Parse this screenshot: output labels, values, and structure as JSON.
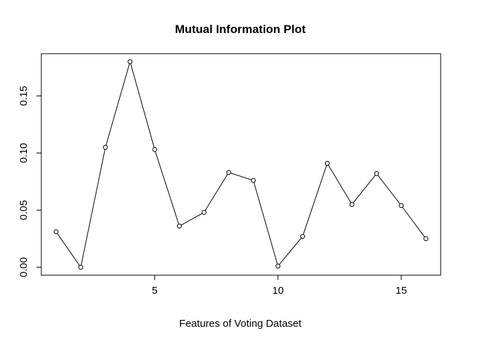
{
  "chart_data": {
    "type": "line",
    "title": "Mutual Information Plot",
    "xlabel": "Features of Voting Dataset",
    "ylabel": "",
    "x": [
      1,
      2,
      3,
      4,
      5,
      6,
      7,
      8,
      9,
      10,
      11,
      12,
      13,
      14,
      15,
      16
    ],
    "series": [
      {
        "values": [
          0.031,
          0.0,
          0.105,
          0.18,
          0.103,
          0.036,
          0.048,
          0.083,
          0.076,
          0.001,
          0.027,
          0.091,
          0.055,
          0.082,
          0.054,
          0.025
        ]
      }
    ],
    "xlim": [
      0.4,
      16.6
    ],
    "ylim": [
      -0.007,
      0.187
    ],
    "x_ticks": [
      "5",
      "10",
      "15"
    ],
    "y_ticks": [
      "0.00",
      "0.05",
      "0.10",
      "0.15"
    ],
    "grid": false,
    "marker": "open-circle",
    "line_color": "#000000"
  }
}
